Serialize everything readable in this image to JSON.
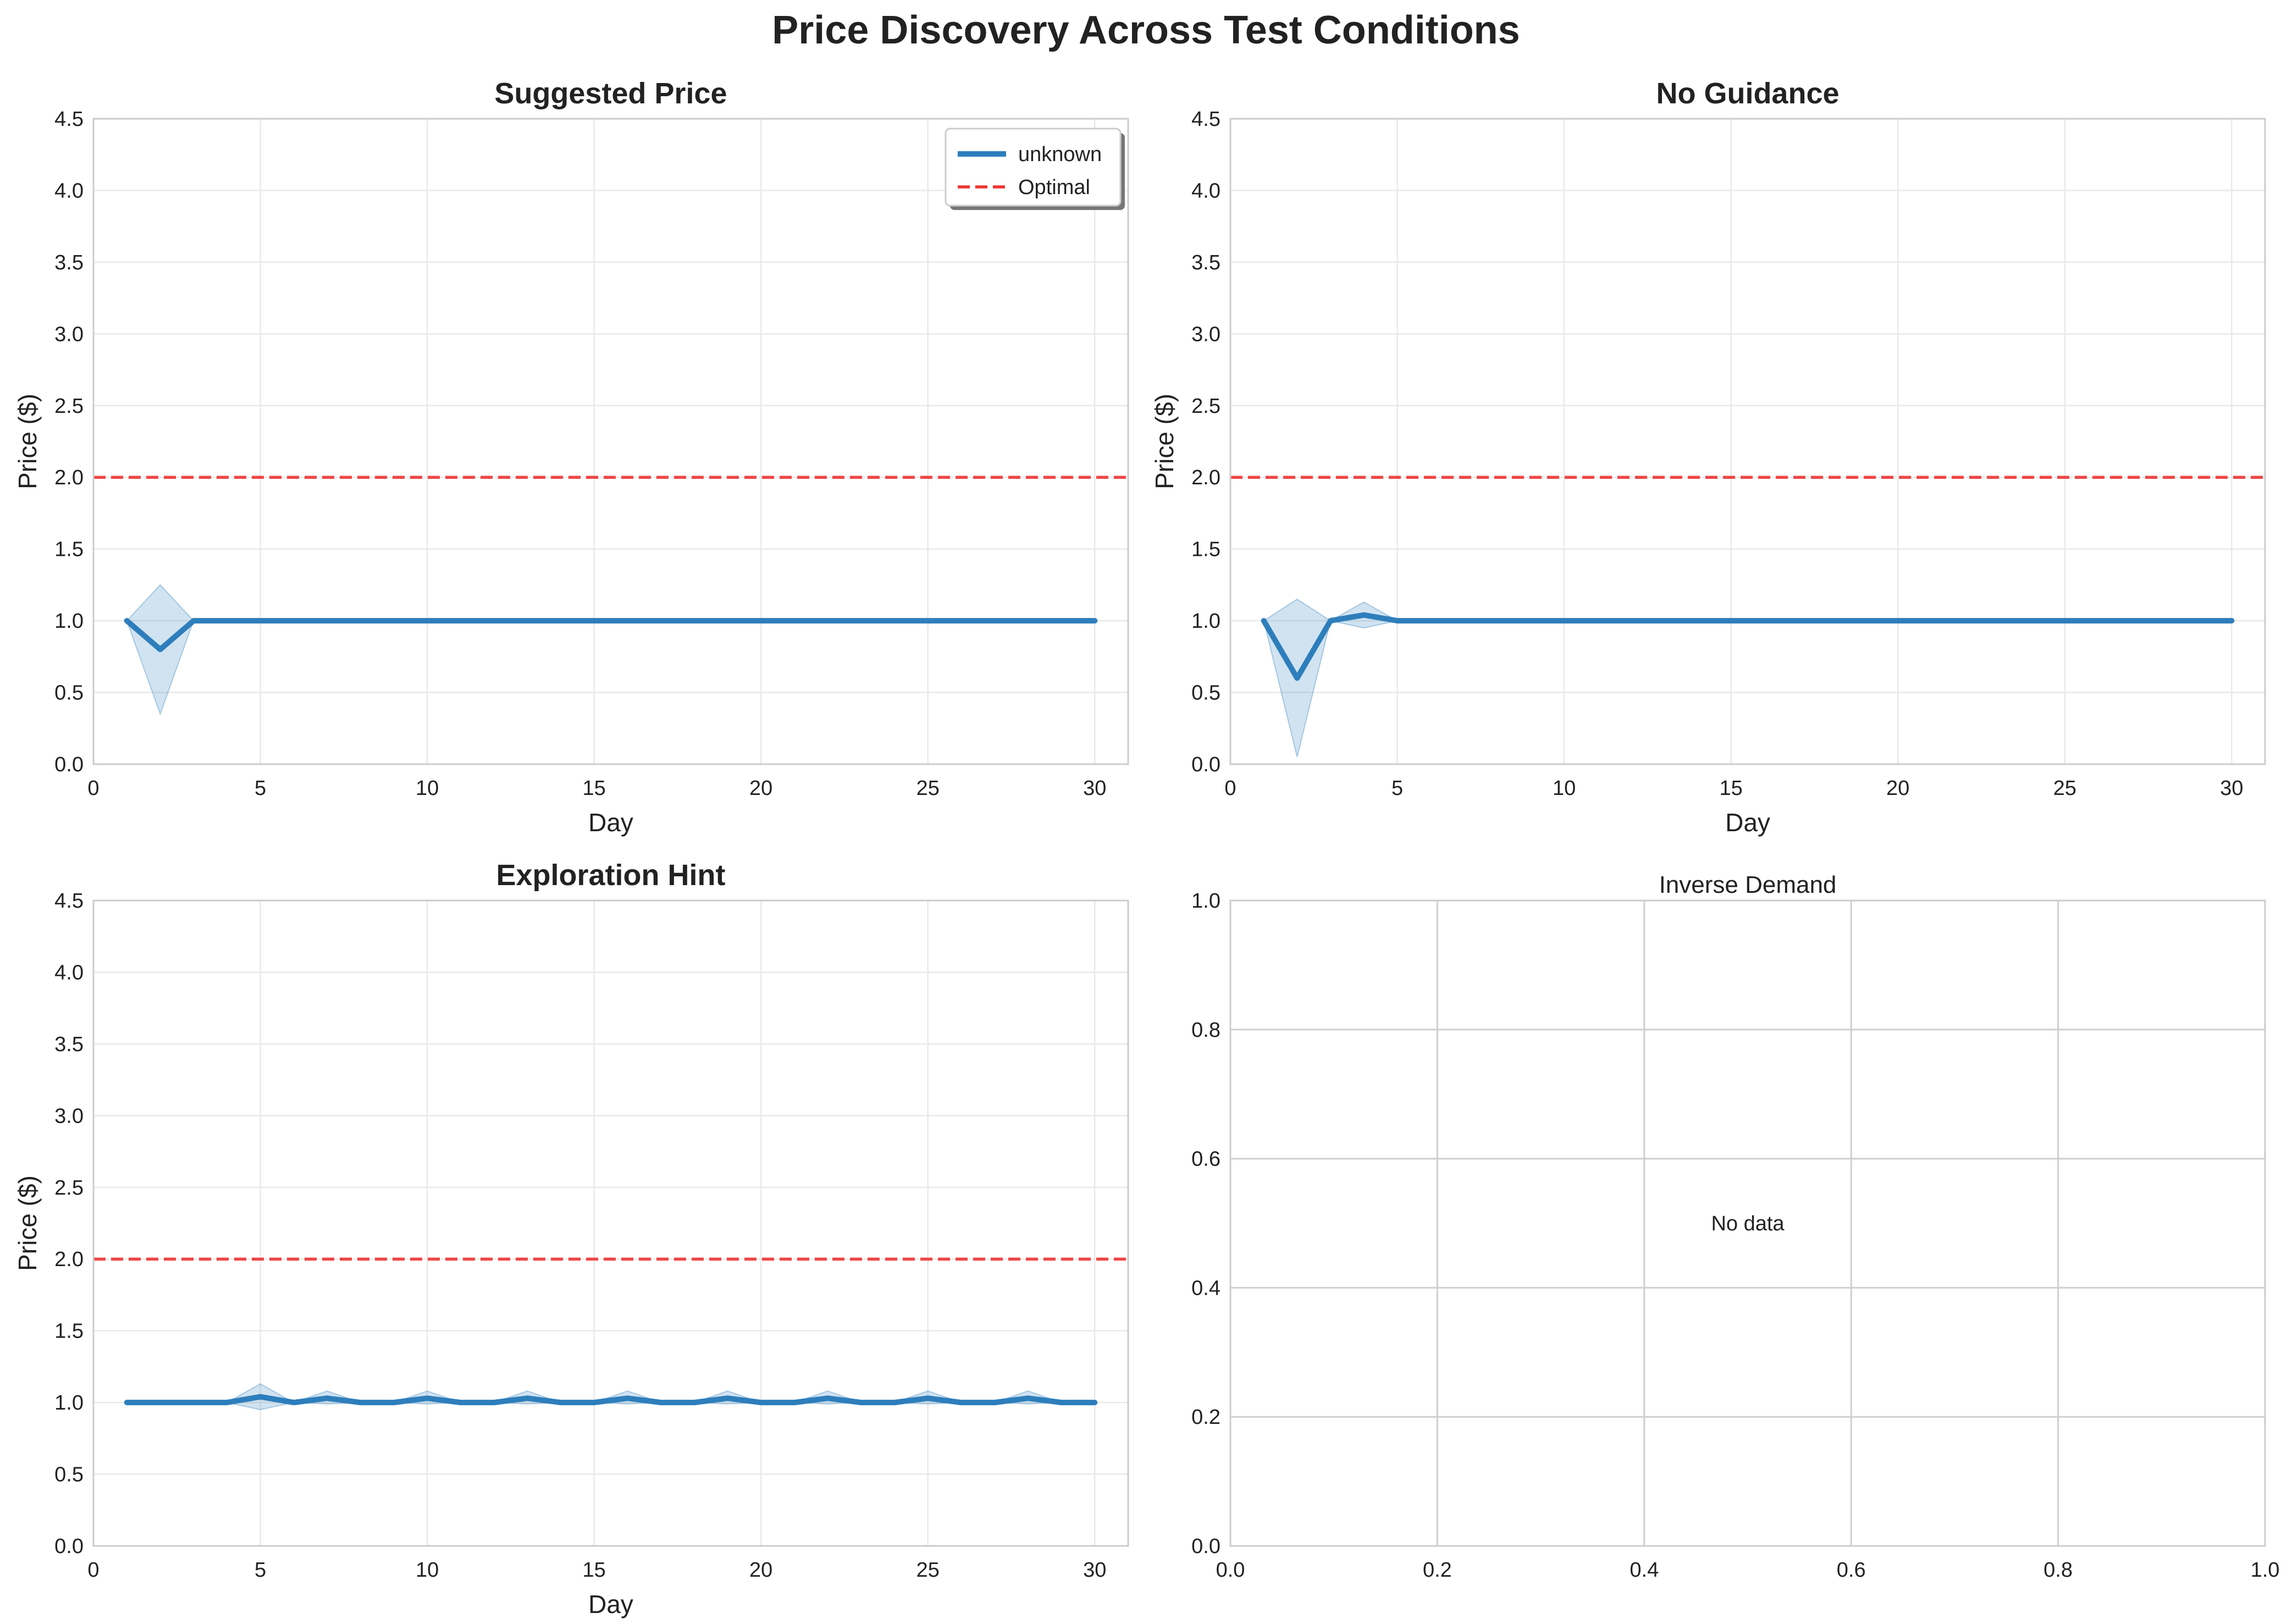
{
  "figure_title": "Price Discovery Across Test Conditions",
  "colors": {
    "series": "#2e7ebc",
    "band": "#2e7ebc",
    "optimal": "#ee3333",
    "grid": "#e9e9e9",
    "axis": "#cccccc"
  },
  "chart_data": [
    {
      "type": "line",
      "title": "Suggested Price",
      "title_bold": true,
      "xlabel": "Day",
      "ylabel": "Price ($)",
      "xlim": [
        0,
        31
      ],
      "ylim": [
        0,
        4.5
      ],
      "xticks": [
        0,
        5,
        10,
        15,
        20,
        25,
        30
      ],
      "yticks": [
        0,
        0.5,
        1,
        1.5,
        2,
        2.5,
        3,
        3.5,
        4,
        4.5
      ],
      "grid": true,
      "legend": {
        "location": "upper-right",
        "entries": [
          {
            "label": "unknown",
            "style": "line"
          },
          {
            "label": "Optimal",
            "style": "dashed"
          }
        ]
      },
      "series": [
        {
          "name": "unknown",
          "x": [
            1,
            2,
            3,
            4,
            5,
            6,
            7,
            8,
            9,
            10,
            11,
            12,
            13,
            14,
            15,
            16,
            17,
            18,
            19,
            20,
            21,
            22,
            23,
            24,
            25,
            26,
            27,
            28,
            29,
            30
          ],
          "y": [
            1,
            0.8,
            1,
            1,
            1,
            1,
            1,
            1,
            1,
            1,
            1,
            1,
            1,
            1,
            1,
            1,
            1,
            1,
            1,
            1,
            1,
            1,
            1,
            1,
            1,
            1,
            1,
            1,
            1,
            1
          ],
          "band_low": [
            1,
            0.35,
            1,
            1,
            1,
            1,
            1,
            1,
            1,
            1,
            1,
            1,
            1,
            1,
            1,
            1,
            1,
            1,
            1,
            1,
            1,
            1,
            1,
            1,
            1,
            1,
            1,
            1,
            1,
            1
          ],
          "band_high": [
            1,
            1.25,
            1,
            1,
            1,
            1,
            1,
            1,
            1,
            1,
            1,
            1,
            1,
            1,
            1,
            1,
            1,
            1,
            1,
            1,
            1,
            1,
            1,
            1,
            1,
            1,
            1,
            1,
            1,
            1
          ]
        }
      ],
      "hline": {
        "name": "Optimal",
        "y": 2.0
      }
    },
    {
      "type": "line",
      "title": "No Guidance",
      "title_bold": true,
      "xlabel": "Day",
      "ylabel": "Price ($)",
      "xlim": [
        0,
        31
      ],
      "ylim": [
        0,
        4.5
      ],
      "xticks": [
        0,
        5,
        10,
        15,
        20,
        25,
        30
      ],
      "yticks": [
        0,
        0.5,
        1,
        1.5,
        2,
        2.5,
        3,
        3.5,
        4,
        4.5
      ],
      "grid": true,
      "series": [
        {
          "x": [
            1,
            2,
            3,
            4,
            5,
            6,
            7,
            8,
            9,
            10,
            11,
            12,
            13,
            14,
            15,
            16,
            17,
            18,
            19,
            20,
            21,
            22,
            23,
            24,
            25,
            26,
            27,
            28,
            29,
            30
          ],
          "y": [
            1,
            0.6,
            1,
            1.04,
            1,
            1,
            1,
            1,
            1,
            1,
            1,
            1,
            1,
            1,
            1,
            1,
            1,
            1,
            1,
            1,
            1,
            1,
            1,
            1,
            1,
            1,
            1,
            1,
            1,
            1
          ],
          "band_low": [
            1,
            0.05,
            1,
            0.95,
            1,
            1,
            1,
            1,
            1,
            1,
            1,
            1,
            1,
            1,
            1,
            1,
            1,
            1,
            1,
            1,
            1,
            1,
            1,
            1,
            1,
            1,
            1,
            1,
            1,
            1
          ],
          "band_high": [
            1,
            1.15,
            1,
            1.13,
            1,
            1,
            1,
            1,
            1,
            1,
            1,
            1,
            1,
            1,
            1,
            1,
            1,
            1,
            1,
            1,
            1,
            1,
            1,
            1,
            1,
            1,
            1,
            1,
            1,
            1
          ]
        }
      ],
      "hline": {
        "y": 2.0
      }
    },
    {
      "type": "line",
      "title": "Exploration Hint",
      "title_bold": true,
      "xlabel": "Day",
      "ylabel": "Price ($)",
      "xlim": [
        0,
        31
      ],
      "ylim": [
        0,
        4.5
      ],
      "xticks": [
        0,
        5,
        10,
        15,
        20,
        25,
        30
      ],
      "yticks": [
        0,
        0.5,
        1,
        1.5,
        2,
        2.5,
        3,
        3.5,
        4,
        4.5
      ],
      "grid": true,
      "series": [
        {
          "x": [
            1,
            2,
            3,
            4,
            5,
            6,
            7,
            8,
            9,
            10,
            11,
            12,
            13,
            14,
            15,
            16,
            17,
            18,
            19,
            20,
            21,
            22,
            23,
            24,
            25,
            26,
            27,
            28,
            29,
            30
          ],
          "y": [
            1,
            1,
            1,
            1,
            1.04,
            1,
            1.03,
            1,
            1,
            1.03,
            1,
            1,
            1.03,
            1,
            1,
            1.03,
            1,
            1,
            1.03,
            1,
            1,
            1.03,
            1,
            1,
            1.03,
            1,
            1,
            1.03,
            1,
            1
          ],
          "band_low": [
            1,
            1,
            1,
            1,
            0.95,
            1,
            0.99,
            1,
            1,
            0.99,
            1,
            1,
            0.99,
            1,
            1,
            0.99,
            1,
            1,
            0.99,
            1,
            1,
            0.99,
            1,
            1,
            0.99,
            1,
            1,
            0.99,
            1,
            1
          ],
          "band_high": [
            1,
            1,
            1,
            1,
            1.13,
            1,
            1.08,
            1,
            1,
            1.08,
            1,
            1,
            1.08,
            1,
            1,
            1.08,
            1,
            1,
            1.08,
            1,
            1,
            1.08,
            1,
            1,
            1.08,
            1,
            1,
            1.08,
            1,
            1
          ]
        }
      ],
      "hline": {
        "y": 2.0
      }
    },
    {
      "type": "line",
      "title": "Inverse Demand",
      "title_bold": false,
      "xlabel": "",
      "ylabel": "",
      "xlim": [
        0,
        1
      ],
      "ylim": [
        0,
        1
      ],
      "xticks": [
        0,
        0.2,
        0.4,
        0.6,
        0.8,
        1.0
      ],
      "yticks": [
        0,
        0.2,
        0.4,
        0.6,
        0.8,
        1.0
      ],
      "tick_decimals": 1,
      "grid": true,
      "grid_strong": true,
      "series": [],
      "annotation": {
        "text": "No data",
        "x": 0.5,
        "y": 0.5
      }
    }
  ]
}
